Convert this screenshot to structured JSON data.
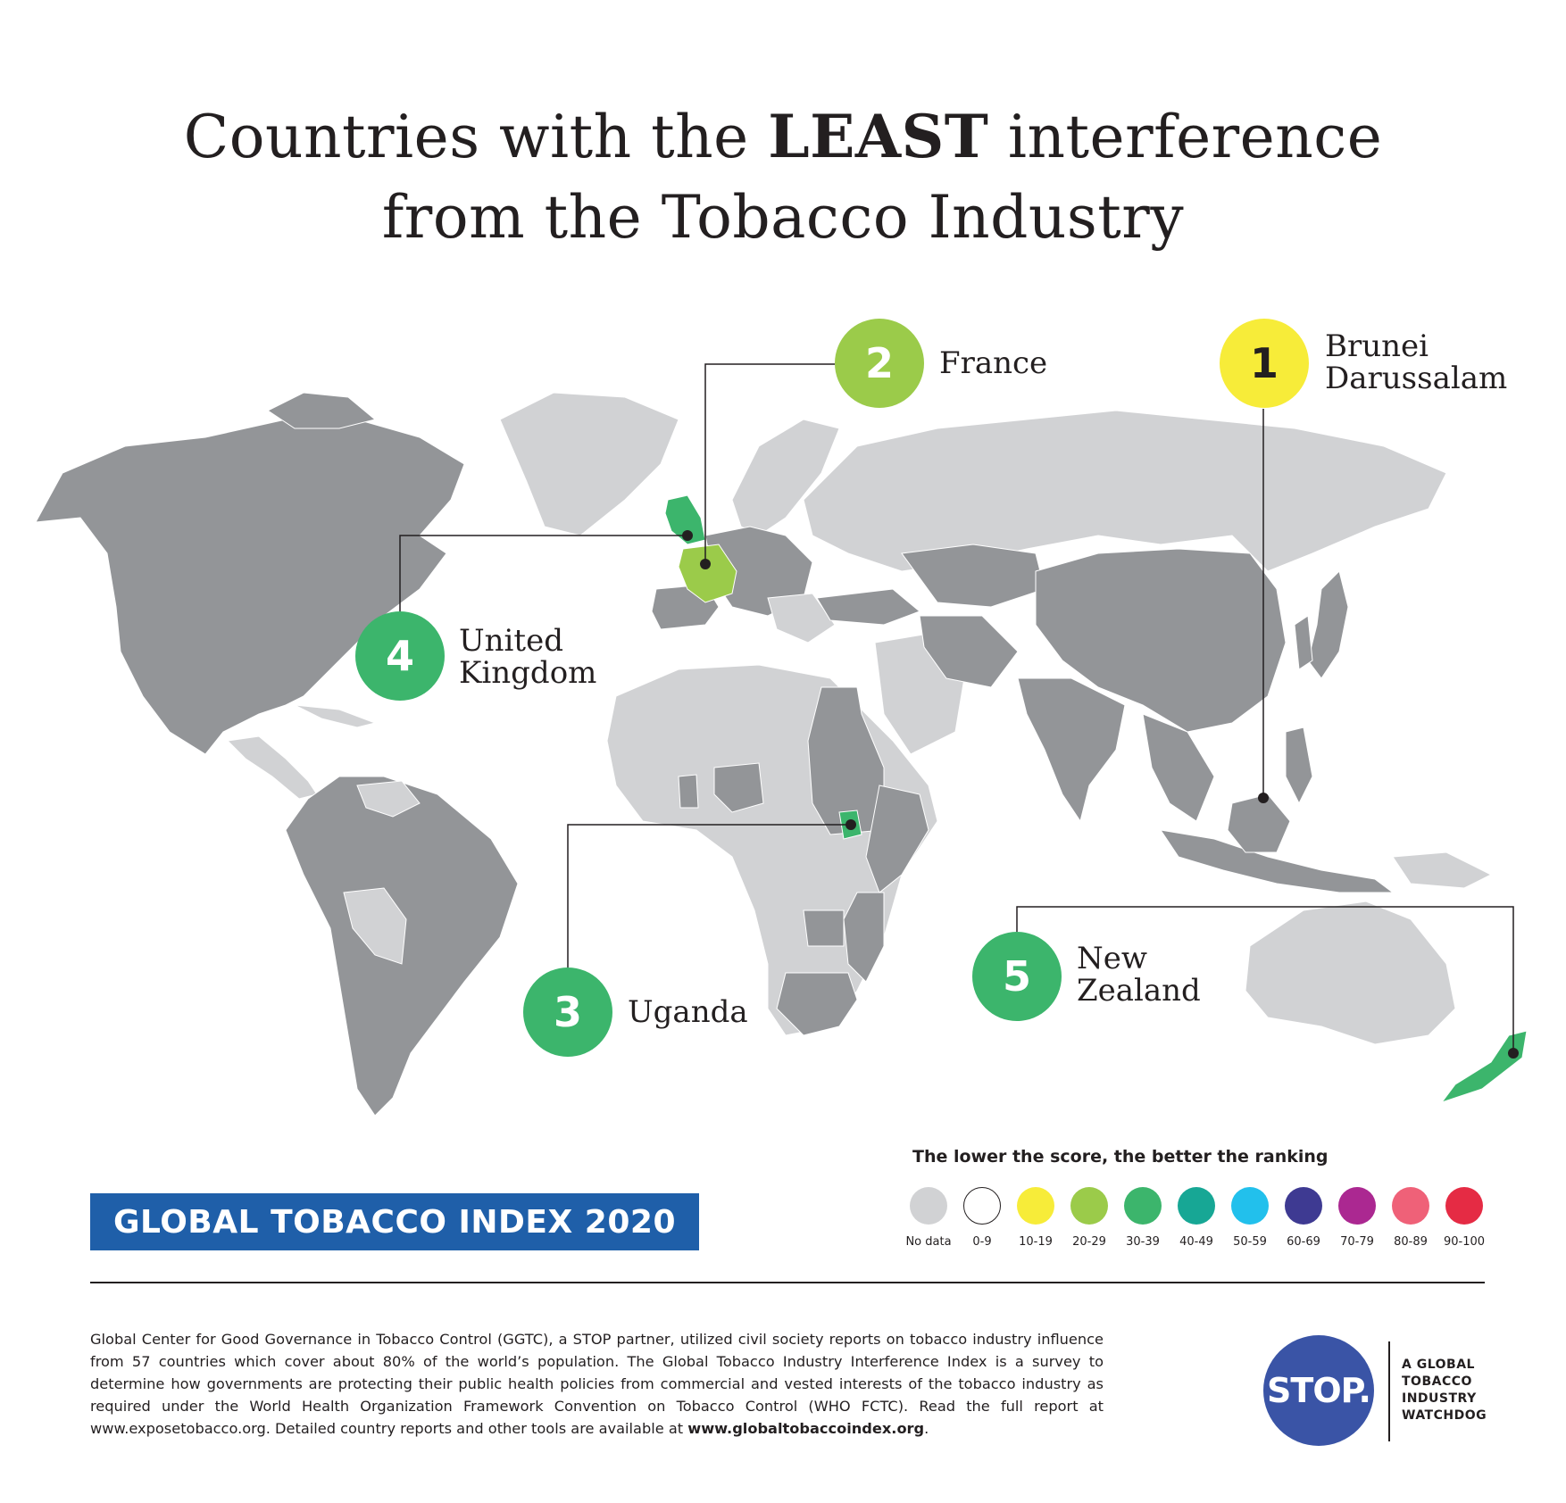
{
  "title": {
    "line1_pre": "Countries with the ",
    "line1_bold": "LEAST",
    "line1_post": " interference",
    "line2": "from the Tobacco Industry"
  },
  "colors": {
    "no_data": "#d1d2d4",
    "surveyed": "#939598",
    "score_0_9": "#ffffff",
    "score_10_19": "#f7ec39",
    "score_20_29": "#9bcb4a",
    "score_30_39": "#3cb56c",
    "score_40_49": "#17a795",
    "score_50_59": "#22c0ec",
    "score_60_69": "#3e3a92",
    "score_70_79": "#ab2891",
    "score_80_89": "#ef6178",
    "score_90_100": "#e52b44"
  },
  "rankings": [
    {
      "rank": "1",
      "country": "Brunei\nDarussalam",
      "color": "#f7ec39"
    },
    {
      "rank": "2",
      "country": "France",
      "color": "#9bcb4a"
    },
    {
      "rank": "3",
      "country": "Uganda",
      "color": "#3cb56c"
    },
    {
      "rank": "4",
      "country": "United\nKingdom",
      "color": "#3cb56c"
    },
    {
      "rank": "5",
      "country": "New\nZealand",
      "color": "#3cb56c"
    }
  ],
  "legend": {
    "title": "The lower the score, the better the ranking",
    "items": [
      {
        "label": "No data",
        "color": "#d1d2d4"
      },
      {
        "label": "0-9",
        "color": "#ffffff"
      },
      {
        "label": "10-19",
        "color": "#f7ec39"
      },
      {
        "label": "20-29",
        "color": "#9bcb4a"
      },
      {
        "label": "30-39",
        "color": "#3cb56c"
      },
      {
        "label": "40-49",
        "color": "#17a795"
      },
      {
        "label": "50-59",
        "color": "#22c0ec"
      },
      {
        "label": "60-69",
        "color": "#3e3a92"
      },
      {
        "label": "70-79",
        "color": "#ab2891"
      },
      {
        "label": "80-89",
        "color": "#ef6178"
      },
      {
        "label": "90-100",
        "color": "#e52b44"
      }
    ]
  },
  "banner": "GLOBAL TOBACCO INDEX 2020",
  "footer": {
    "text": "Global Center for Good Governance in Tobacco Control (GGTC), a STOP partner, utilized civil society reports on tobacco industry influence from 57 countries which cover about 80% of the world’s population. The Global Tobacco Industry Interference Index is a survey to determine how governments are protecting their public health policies from commercial and vested interests of the tobacco industry as required under the World Health Organization Framework Convention on Tobacco Control (WHO FCTC). Read the full report at www.exposetobacco.org. Detailed country reports and other tools are available at ",
    "link": "www.globaltobaccoindex.org",
    "end": "."
  },
  "logo": {
    "mark": "STOP.",
    "tagline": "A GLOBAL\nTOBACCO\nINDUSTRY\nWATCHDOG"
  }
}
